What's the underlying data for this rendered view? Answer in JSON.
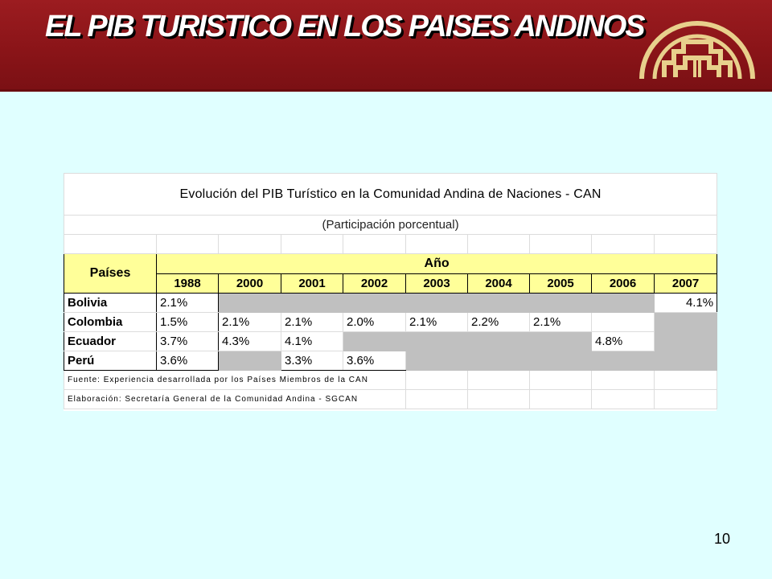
{
  "slide": {
    "title": "EL PIB  TURISTICO EN  LOS PAISES ANDINOS",
    "number": "10"
  },
  "table": {
    "title": "Evolución del PIB Turístico en la Comunidad Andina de Naciones - CAN",
    "subtitle": "(Participación porcentual)",
    "col_header_country": "Países",
    "col_header_year": "Año",
    "years": [
      "1988",
      "2000",
      "2001",
      "2002",
      "2003",
      "2004",
      "2005",
      "2006",
      "2007"
    ],
    "rows": [
      {
        "country": "Bolivia",
        "values": [
          "2.1%",
          "",
          "",
          "",
          "",
          "",
          "",
          "",
          "4.1%"
        ]
      },
      {
        "country": "Colombia",
        "values": [
          "1.5%",
          "2.1%",
          "2.1%",
          "2.0%",
          "2.1%",
          "2.2%",
          "2.1%",
          "",
          ""
        ]
      },
      {
        "country": "Ecuador",
        "values": [
          "3.7%",
          "4.3%",
          "4.1%",
          "",
          "",
          "",
          "",
          "4.8%",
          ""
        ]
      },
      {
        "country": "Perú",
        "values": [
          "3.6%",
          "",
          "3.3%",
          "3.6%",
          "",
          "",
          "",
          "",
          ""
        ]
      }
    ],
    "footnote_source": "Fuente: Experiencia desarrollada por los Países Miembros de la CAN",
    "footnote_elaboration": "Elaboración: Secretaría General de la Comunidad Andina - SGCAN"
  },
  "colors": {
    "header_red": "#8a1418",
    "background": "#e0ffff",
    "header_yellow": "#ffff99",
    "gray_cell": "#c0c0c0",
    "logo_gold": "#e8d08c"
  },
  "icons": {
    "logo": "can-andean-logo"
  }
}
